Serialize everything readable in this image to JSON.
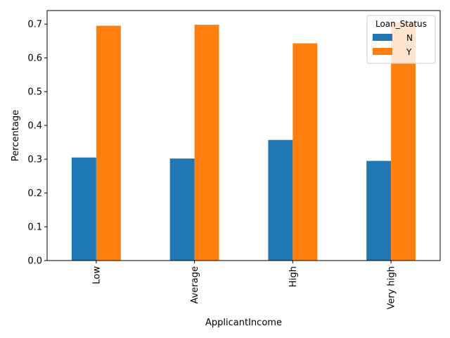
{
  "chart_data": {
    "type": "bar",
    "categories": [
      "Low",
      "Average",
      "High",
      "Very high"
    ],
    "series": [
      {
        "name": "N",
        "values": [
          0.305,
          0.302,
          0.357,
          0.295
        ],
        "color": "#1f77b4"
      },
      {
        "name": "Y",
        "values": [
          0.695,
          0.698,
          0.643,
          0.705
        ],
        "color": "#ff7f0e"
      }
    ],
    "xlabel": "ApplicantIncome",
    "ylabel": "Percentage",
    "yticks": [
      "0.0",
      "0.1",
      "0.2",
      "0.3",
      "0.4",
      "0.5",
      "0.6",
      "0.7"
    ],
    "ylim": [
      0,
      0.74
    ],
    "grid": false,
    "legend": {
      "title": "Loan_Status",
      "placement": "top-right"
    }
  }
}
